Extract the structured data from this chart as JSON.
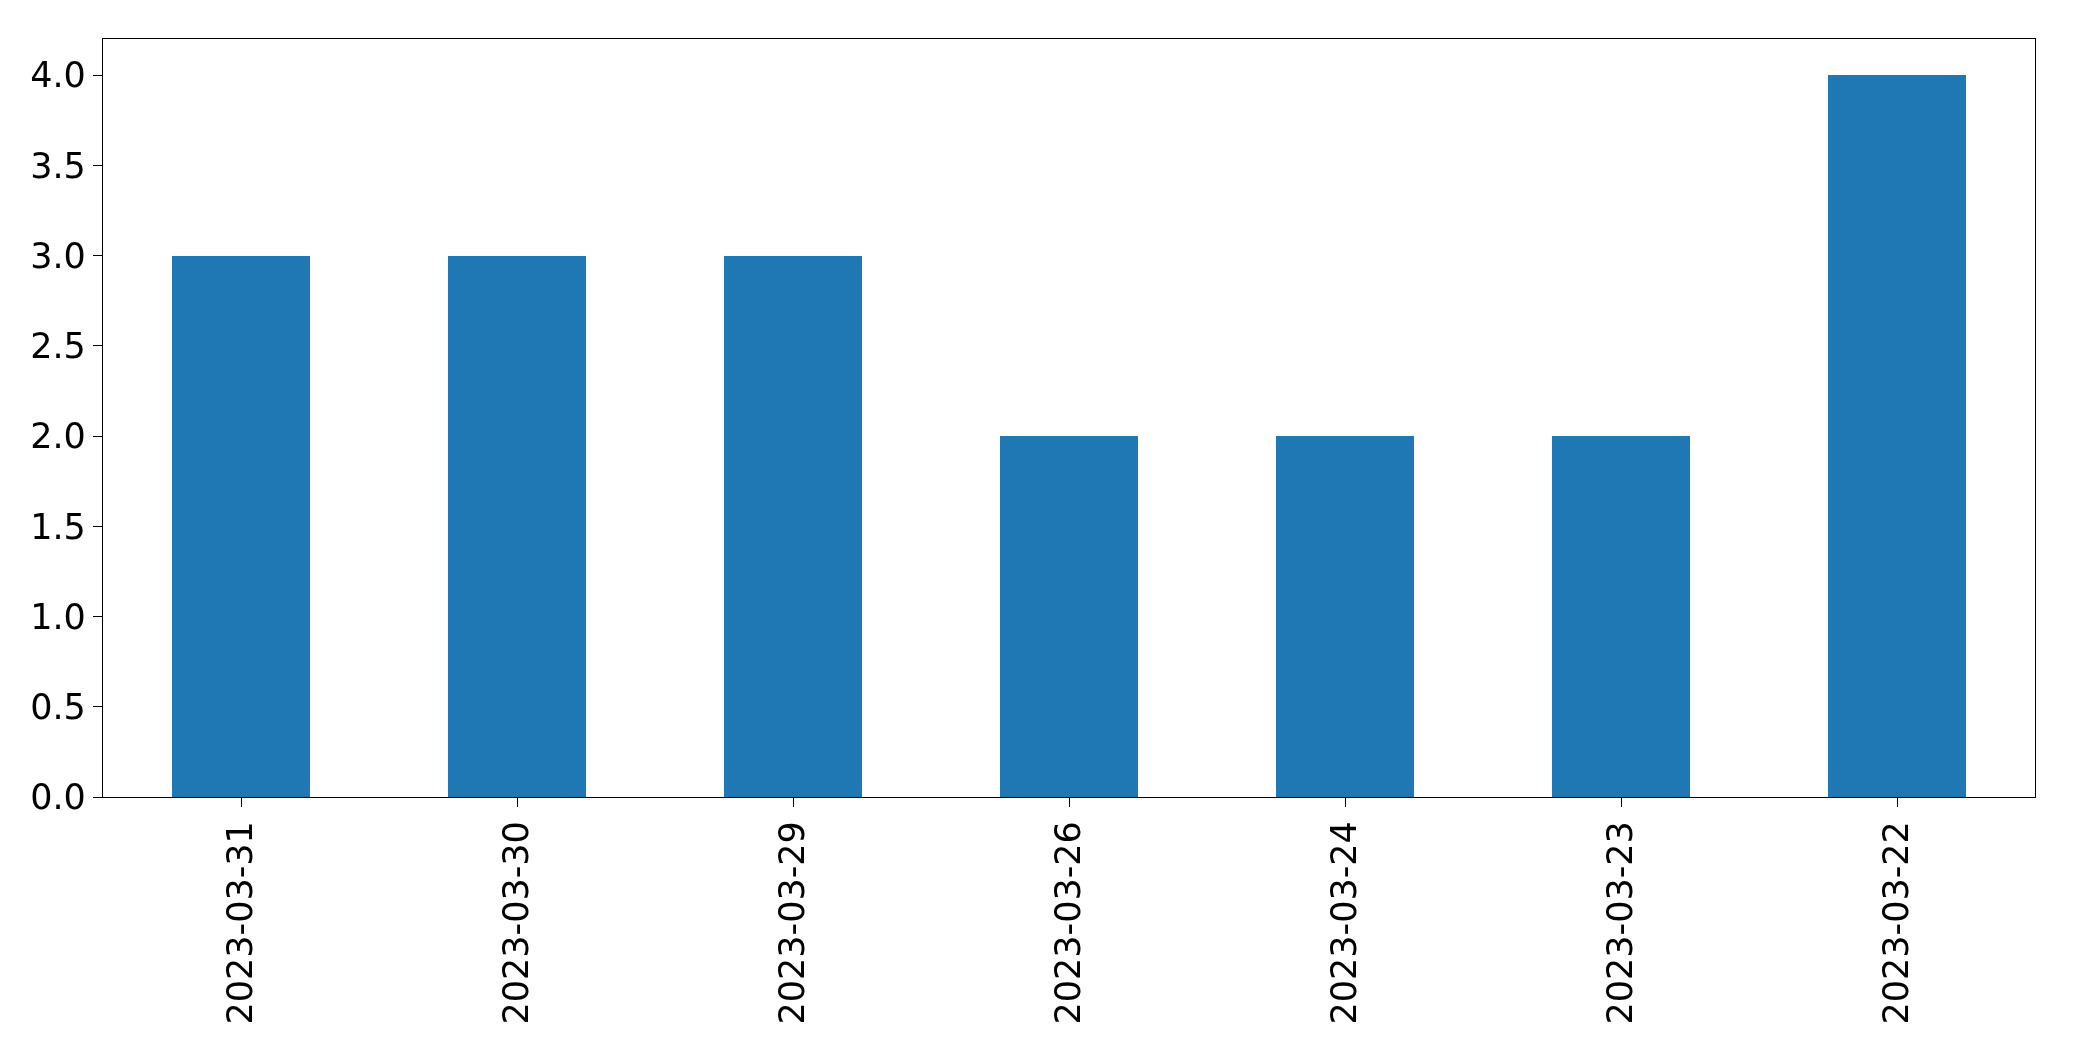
{
  "chart_data": {
    "type": "bar",
    "categories": [
      "2023-03-31",
      "2023-03-30",
      "2023-03-29",
      "2023-03-26",
      "2023-03-24",
      "2023-03-23",
      "2023-03-22"
    ],
    "values": [
      3,
      3,
      3,
      2,
      2,
      2,
      4
    ],
    "color": "#1f77b4",
    "ylim": [
      0,
      4.2
    ],
    "yticks": [
      {
        "value": 0,
        "label": "0.0"
      },
      {
        "value": 0.5,
        "label": "0.5"
      },
      {
        "value": 1,
        "label": "1.0"
      },
      {
        "value": 1.5,
        "label": "1.5"
      },
      {
        "value": 2,
        "label": "2.0"
      },
      {
        "value": 2.5,
        "label": "2.5"
      },
      {
        "value": 3,
        "label": "3.0"
      },
      {
        "value": 3.5,
        "label": "3.5"
      },
      {
        "value": 4,
        "label": "4.0"
      }
    ]
  }
}
